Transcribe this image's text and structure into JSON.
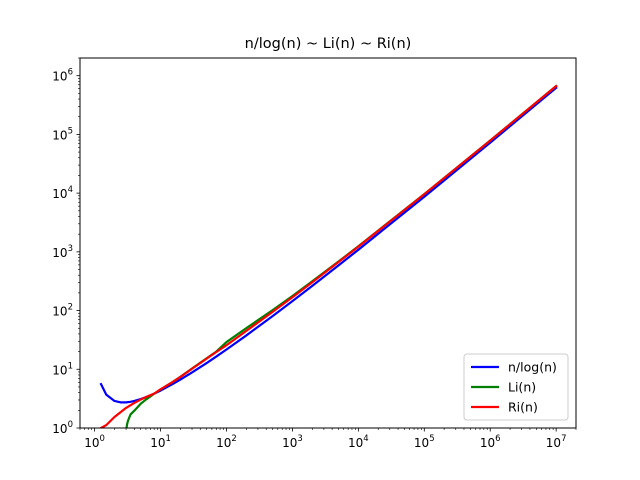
{
  "chart_data": {
    "type": "line",
    "title": "n/log(n) ~ Li(n) ~ Ri(n)",
    "xlabel": "",
    "ylabel": "",
    "xscale": "log",
    "yscale": "log",
    "xlim": [
      0.6,
      20000000
    ],
    "ylim": [
      1,
      2000000
    ],
    "x_ticks": [
      {
        "value": 1,
        "base": "10",
        "exp": "0"
      },
      {
        "value": 10,
        "base": "10",
        "exp": "1"
      },
      {
        "value": 100,
        "base": "10",
        "exp": "2"
      },
      {
        "value": 1000,
        "base": "10",
        "exp": "3"
      },
      {
        "value": 10000,
        "base": "10",
        "exp": "4"
      },
      {
        "value": 100000,
        "base": "10",
        "exp": "5"
      },
      {
        "value": 1000000,
        "base": "10",
        "exp": "6"
      },
      {
        "value": 10000000,
        "base": "10",
        "exp": "7"
      }
    ],
    "y_ticks": [
      {
        "value": 1,
        "base": "10",
        "exp": "0"
      },
      {
        "value": 10,
        "base": "10",
        "exp": "1"
      },
      {
        "value": 100,
        "base": "10",
        "exp": "2"
      },
      {
        "value": 1000,
        "base": "10",
        "exp": "3"
      },
      {
        "value": 10000,
        "base": "10",
        "exp": "4"
      },
      {
        "value": 100000,
        "base": "10",
        "exp": "5"
      },
      {
        "value": 1000000,
        "base": "10",
        "exp": "6"
      }
    ],
    "grid": false,
    "legend_position": "lower-right",
    "series": [
      {
        "name": "n/log(n)",
        "color": "#0000ff",
        "x": [
          1.25,
          1.5,
          2,
          2.5,
          3,
          3.5,
          4,
          5,
          6,
          7,
          8,
          10,
          15,
          20,
          30,
          50,
          70,
          100,
          200,
          500,
          1000,
          2000,
          5000,
          10000,
          100000,
          1000000,
          10000000
        ],
        "y": [
          5.6,
          3.7,
          2.89,
          2.73,
          2.73,
          2.79,
          2.89,
          3.11,
          3.35,
          3.6,
          3.85,
          4.34,
          5.54,
          6.68,
          8.82,
          12.78,
          16.48,
          21.7,
          37.7,
          80.5,
          144.8,
          263.1,
          587.0,
          1086,
          8686,
          72382,
          620421
        ]
      },
      {
        "name": "Li(n)",
        "color": "#008000",
        "x": [
          3.05,
          3.1,
          3.2,
          3.5,
          4,
          5,
          6,
          7,
          8,
          10,
          15,
          20,
          30,
          50,
          70,
          100,
          200,
          500,
          1000,
          2000,
          5000,
          10000,
          100000,
          1000000,
          10000000
        ],
        "y": [
          1.0,
          1.14,
          1.32,
          1.7,
          1.97,
          2.59,
          3.05,
          3.45,
          3.83,
          4.54,
          6.0,
          7.45,
          10.3,
          15.4,
          20.0,
          29.1,
          50.2,
          101.8,
          176.6,
          314.8,
          684.3,
          1245,
          9628,
          78627,
          664918
        ]
      },
      {
        "name": "Ri(n)",
        "color": "#ff0000",
        "x": [
          1.25,
          1.5,
          2,
          3,
          4,
          5,
          6,
          7,
          8,
          10,
          15,
          20,
          30,
          50,
          70,
          100,
          200,
          500,
          1000,
          2000,
          5000,
          10000,
          100000,
          1000000,
          10000000
        ],
        "y": [
          1.0,
          1.12,
          1.54,
          2.2,
          2.67,
          3.05,
          3.35,
          3.62,
          3.85,
          4.56,
          6.0,
          7.4,
          10.2,
          15.2,
          19.7,
          25.7,
          45.1,
          94.8,
          168.4,
          303.5,
          670.1,
          1226,
          9587,
          78527,
          664667
        ]
      }
    ]
  }
}
